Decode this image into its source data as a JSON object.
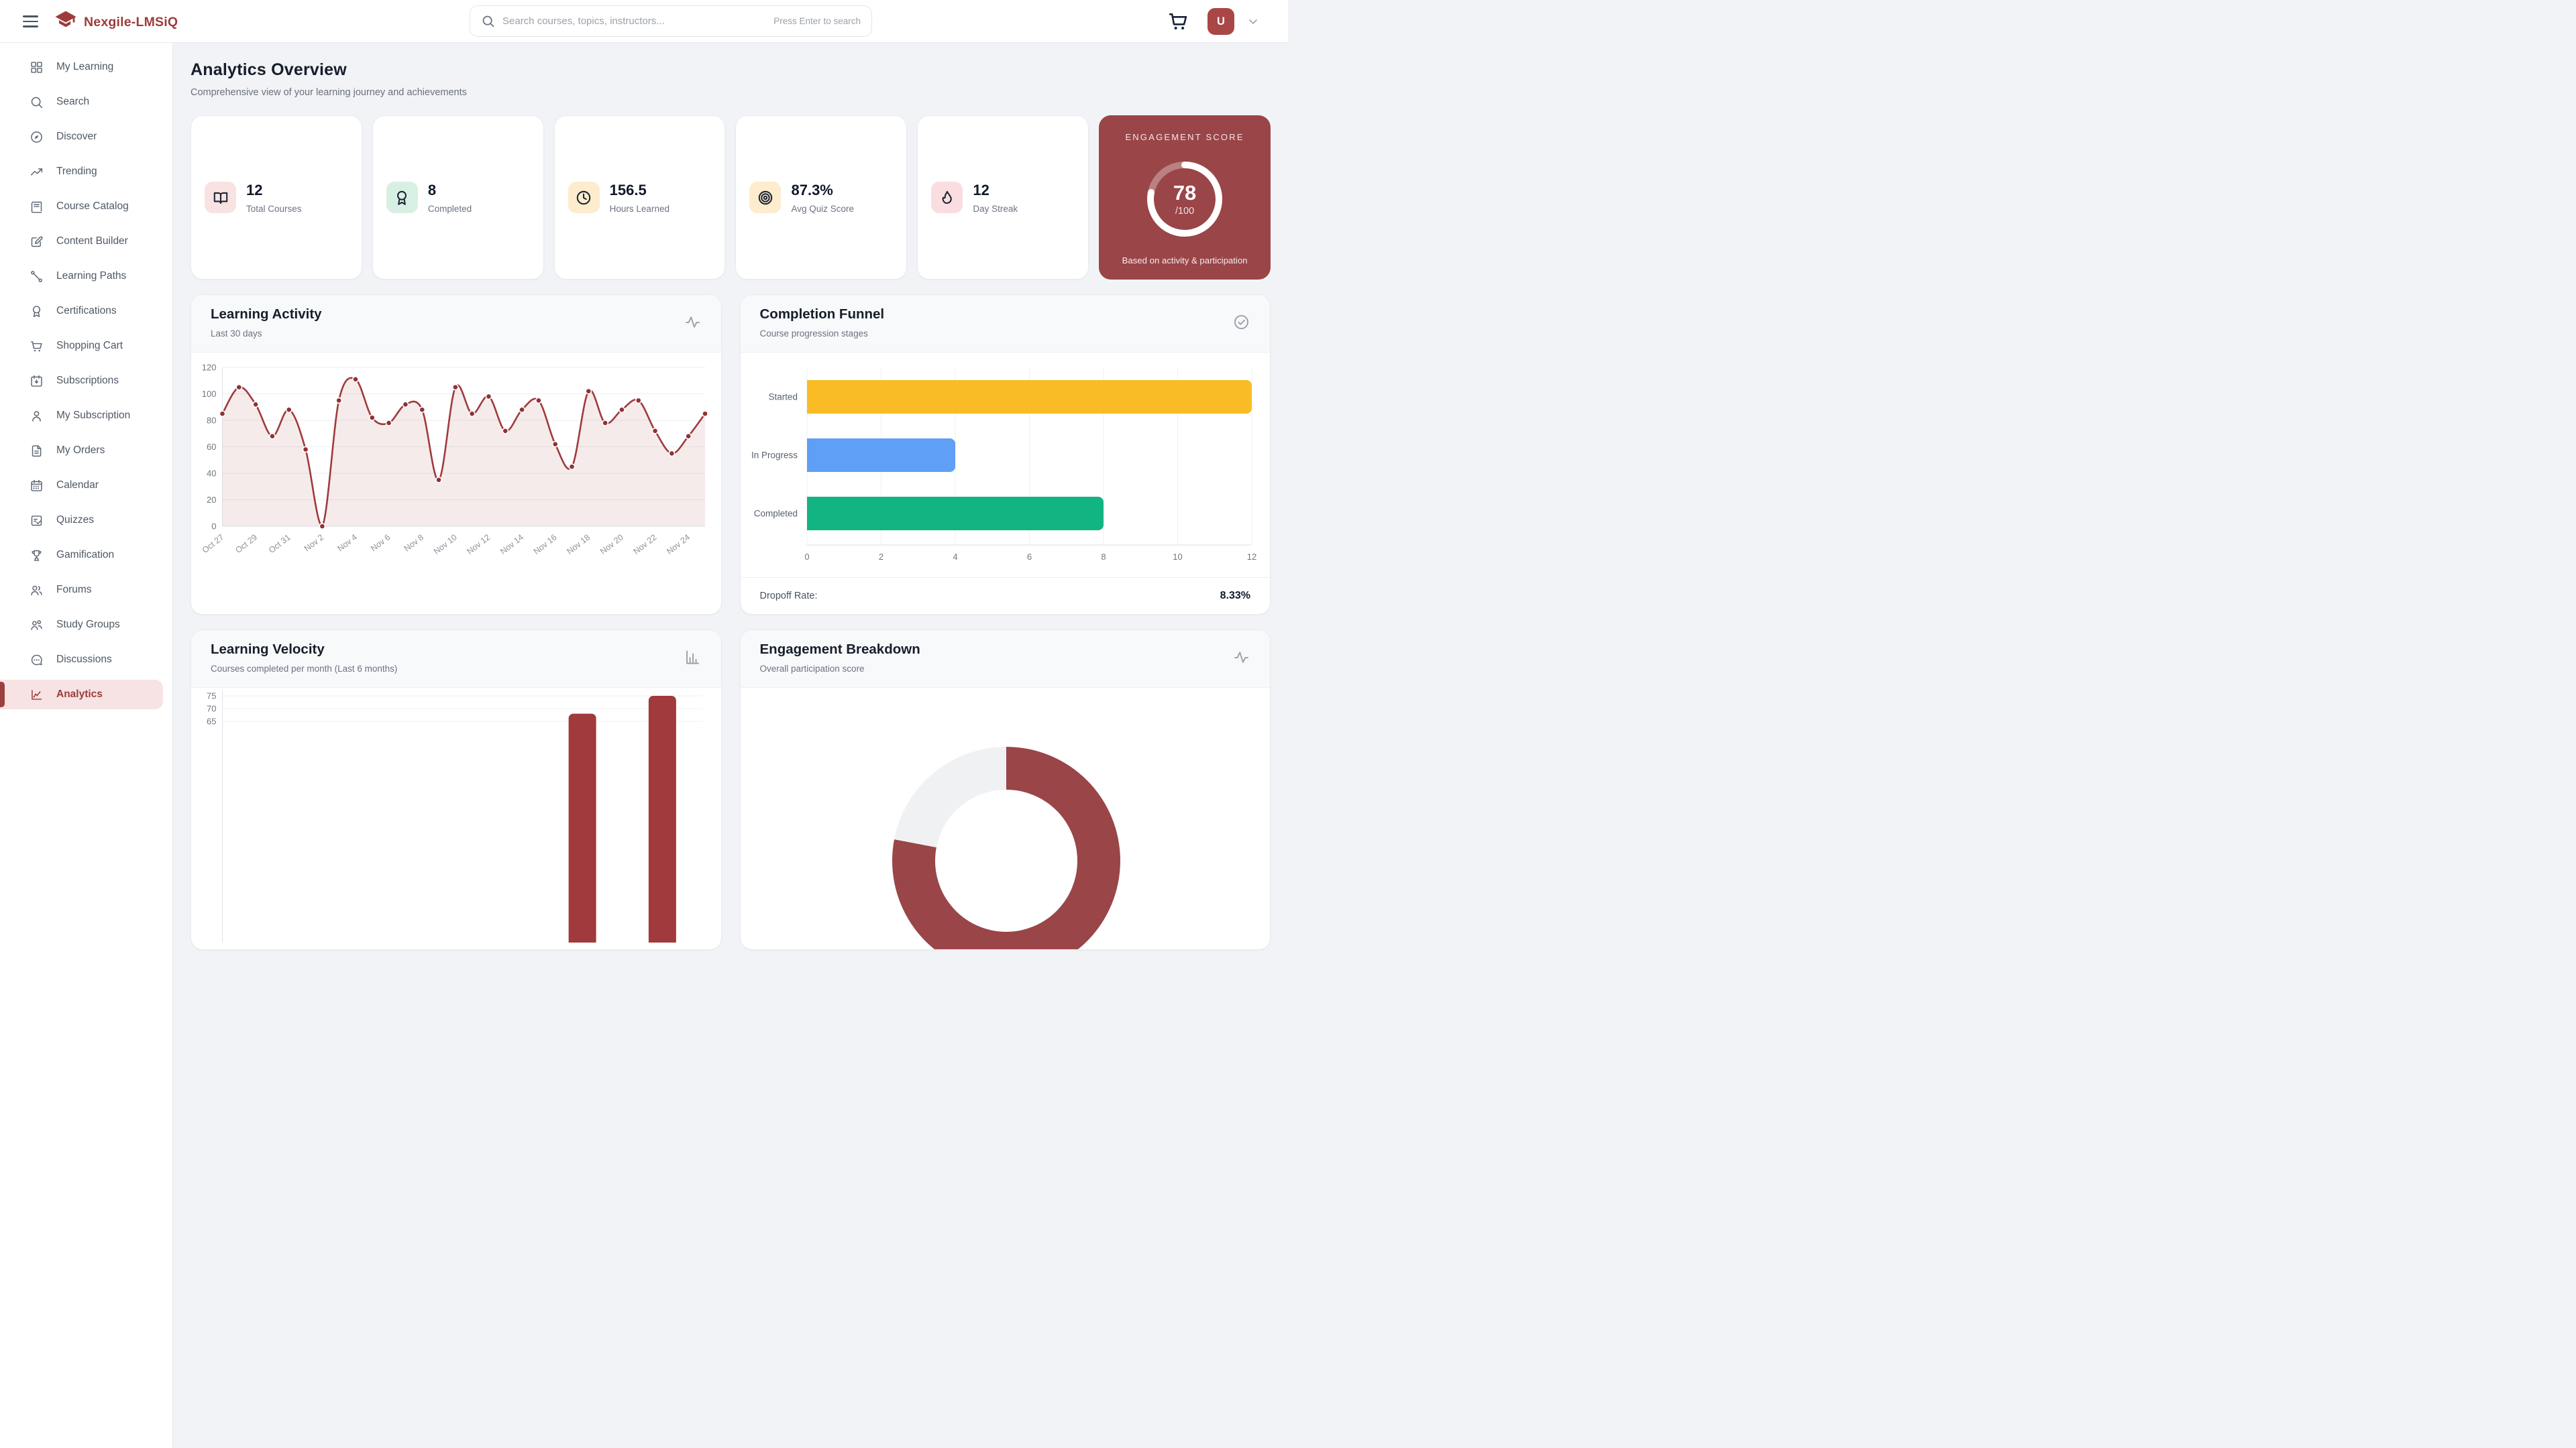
{
  "header": {
    "brand": "Nexgile-LMSiQ",
    "search_placeholder": "Search courses, topics, instructors...",
    "search_hint": "Press Enter to search",
    "avatar_initial": "U",
    "icons": [
      "menu-icon",
      "graduation-cap-logo",
      "search-icon",
      "cart-icon",
      "chevron-down-icon"
    ]
  },
  "sidebar": {
    "items": [
      {
        "label": "My Learning",
        "icon": "grid-icon",
        "active": false
      },
      {
        "label": "Search",
        "icon": "search-icon",
        "active": false
      },
      {
        "label": "Discover",
        "icon": "compass-icon",
        "active": false
      },
      {
        "label": "Trending",
        "icon": "trending-up-icon",
        "active": false
      },
      {
        "label": "Course Catalog",
        "icon": "book-icon",
        "active": false
      },
      {
        "label": "Content Builder",
        "icon": "edit-square-icon",
        "active": false
      },
      {
        "label": "Learning Paths",
        "icon": "path-nodes-icon",
        "active": false
      },
      {
        "label": "Certifications",
        "icon": "award-icon",
        "active": false
      },
      {
        "label": "Shopping Cart",
        "icon": "cart-icon",
        "active": false
      },
      {
        "label": "Subscriptions",
        "icon": "calendar-down-icon",
        "active": false
      },
      {
        "label": "My Subscription",
        "icon": "user-icon",
        "active": false
      },
      {
        "label": "My Orders",
        "icon": "file-icon",
        "active": false
      },
      {
        "label": "Calendar",
        "icon": "calendar-icon",
        "active": false
      },
      {
        "label": "Quizzes",
        "icon": "quiz-icon",
        "active": false
      },
      {
        "label": "Gamification",
        "icon": "trophy-icon",
        "active": false
      },
      {
        "label": "Forums",
        "icon": "users-icon",
        "active": false
      },
      {
        "label": "Study Groups",
        "icon": "study-groups-icon",
        "active": false
      },
      {
        "label": "Discussions",
        "icon": "chat-icon",
        "active": false
      },
      {
        "label": "Analytics",
        "icon": "chart-line-icon",
        "active": true
      }
    ]
  },
  "page": {
    "title": "Analytics Overview",
    "subtitle": "Comprehensive view of your learning journey and achievements"
  },
  "stats": [
    {
      "value": "12",
      "label": "Total Courses",
      "icon": "book-open-icon",
      "icon_bg": "#f8e2e2"
    },
    {
      "value": "8",
      "label": "Completed",
      "icon": "award-icon",
      "icon_bg": "#d8f0e4"
    },
    {
      "value": "156.5",
      "label": "Hours Learned",
      "icon": "clock-icon",
      "icon_bg": "#fdeccd"
    },
    {
      "value": "87.3%",
      "label": "Avg Quiz Score",
      "icon": "target-icon",
      "icon_bg": "#fdeccd"
    },
    {
      "value": "12",
      "label": "Day Streak",
      "icon": "flame-icon",
      "icon_bg": "#fadde1"
    }
  ],
  "engagement_score": {
    "title": "ENGAGEMENT SCORE",
    "value": 78,
    "max": 100,
    "suffix": "/100",
    "caption": "Based on activity & participation",
    "panel_color": "#9a4548",
    "ring_color": "#ffffff"
  },
  "chart_data": [
    {
      "id": "learning_activity",
      "type": "line",
      "title": "Learning Activity",
      "subtitle": "Last 30 days",
      "corner_icon": "activity-icon",
      "x": [
        "Oct 27",
        "Oct 28",
        "Oct 29",
        "Oct 30",
        "Oct 31",
        "Nov 1",
        "Nov 2",
        "Nov 3",
        "Nov 4",
        "Nov 5",
        "Nov 6",
        "Nov 7",
        "Nov 8",
        "Nov 9",
        "Nov 10",
        "Nov 11",
        "Nov 12",
        "Nov 13",
        "Nov 14",
        "Nov 15",
        "Nov 16",
        "Nov 17",
        "Nov 18",
        "Nov 19",
        "Nov 20",
        "Nov 21",
        "Nov 22",
        "Nov 23",
        "Nov 24",
        "Nov 25"
      ],
      "values": [
        85,
        105,
        92,
        68,
        88,
        58,
        0,
        95,
        111,
        82,
        78,
        92,
        88,
        35,
        105,
        85,
        98,
        72,
        88,
        95,
        62,
        45,
        102,
        78,
        88,
        95,
        72,
        55,
        68,
        85
      ],
      "xtick_labels": [
        "Oct 27",
        "Oct 29",
        "Oct 31",
        "Nov 2",
        "Nov 4",
        "Nov 6",
        "Nov 8",
        "Nov 10",
        "Nov 12",
        "Nov 14",
        "Nov 16",
        "Nov 18",
        "Nov 20",
        "Nov 22",
        "Nov 24"
      ],
      "ylim": [
        0,
        120
      ],
      "yticks": [
        0,
        20,
        40,
        60,
        80,
        100,
        120
      ],
      "grid": true,
      "line_color": "#a03a3c",
      "fill_color": "rgba(160,58,60,0.10)",
      "dot_color": "#8f3335"
    },
    {
      "id": "completion_funnel",
      "type": "bar-horizontal",
      "title": "Completion Funnel",
      "subtitle": "Course progression stages",
      "corner_icon": "check-circle-icon",
      "categories": [
        "Started",
        "In Progress",
        "Completed"
      ],
      "values": [
        12,
        4,
        8
      ],
      "bar_colors": [
        "#f9bc25",
        "#5f9ff6",
        "#12b482"
      ],
      "xlim": [
        0,
        12
      ],
      "xticks": [
        0,
        2,
        4,
        6,
        8,
        10,
        12
      ],
      "grid": true,
      "footer_label": "Dropoff Rate:",
      "footer_value": "8.33%"
    },
    {
      "id": "learning_velocity",
      "type": "bar",
      "title": "Learning Velocity",
      "subtitle": "Courses completed per month (Last 6 months)",
      "corner_icon": "bar-chart-icon",
      "slots": 6,
      "visible_bars": [
        {
          "index": 4,
          "value": 68
        },
        {
          "index": 5,
          "value": 75
        }
      ],
      "yticks_visible": [
        75,
        70,
        65
      ],
      "bar_color": "#a03a3c",
      "clipped_by_viewport": true
    },
    {
      "id": "engagement_breakdown",
      "type": "donut",
      "title": "Engagement Breakdown",
      "subtitle": "Overall participation score",
      "corner_icon": "activity-icon",
      "segments": [
        {
          "label": "engaged",
          "value": 78,
          "color": "#9a4548"
        },
        {
          "label": "remaining",
          "value": 22,
          "color": "#f0f1f3"
        }
      ],
      "clipped_by_viewport": true
    }
  ]
}
